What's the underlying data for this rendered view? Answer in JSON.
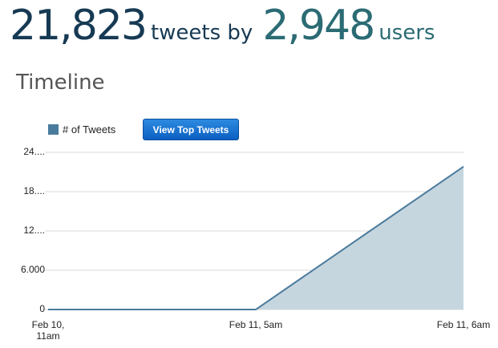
{
  "header": {
    "tweets": "21,823",
    "tweets_label": "tweets by",
    "users": "2,948",
    "users_label": "users"
  },
  "section_title": "Timeline",
  "button": "View Top Tweets",
  "chart_data": {
    "type": "area",
    "categories": [
      "Feb 10, 11am",
      "Feb 11, 5am",
      "Feb 11, 6am"
    ],
    "series": [
      {
        "name": "# of Tweets",
        "color": "#4a7b9c",
        "fill": "#c6d6df",
        "values": [
          0,
          0,
          21823
        ]
      }
    ],
    "ylim": [
      0,
      24000
    ],
    "yticks": [
      0,
      {
        "value": 6000,
        "label": "6.000"
      },
      {
        "value": 12000,
        "label": "12...."
      },
      {
        "value": 18000,
        "label": "18...."
      },
      {
        "value": 24000,
        "label": "24...."
      }
    ],
    "grid": true
  }
}
